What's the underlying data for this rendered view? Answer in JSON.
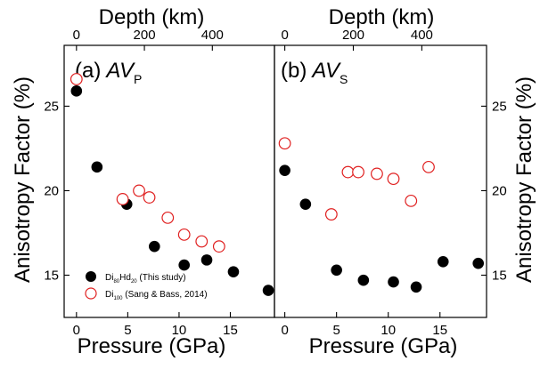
{
  "chart_data": [
    {
      "type": "scatter",
      "panel_label": "(a)",
      "panel_symbol": "AV",
      "panel_subscript": "P",
      "xlabel": "Pressure (GPa)",
      "ylabel": "Anisotropy Factor (%)",
      "top_xlabel": "Depth (km)",
      "xlim": [
        -1.2,
        19.3
      ],
      "ylim": [
        12.5,
        28.6
      ],
      "xticks": [
        0,
        5,
        10,
        15
      ],
      "yticks": [
        15,
        20,
        25
      ],
      "top_xticks": [
        0,
        200,
        400
      ],
      "series": [
        {
          "name_main": "Di",
          "name_sub1": "80",
          "name_mid": "Hd",
          "name_sub2": "20",
          "name_tail": " (This study)",
          "marker": "filled-circle",
          "color": "#000000",
          "x": [
            0.0,
            2.0,
            4.9,
            7.6,
            10.5,
            12.7,
            15.3,
            18.7
          ],
          "y": [
            25.9,
            21.4,
            19.2,
            16.7,
            15.6,
            15.9,
            15.2,
            14.1
          ]
        },
        {
          "name_main": "Di",
          "name_sub1": "100",
          "name_tail": " (Sang & Bass, 2014)",
          "marker": "open-circle",
          "color": "#e02020",
          "x": [
            0.0,
            4.5,
            6.1,
            7.1,
            8.9,
            10.5,
            12.2,
            13.9
          ],
          "y": [
            26.6,
            19.5,
            20.0,
            19.6,
            18.4,
            17.4,
            17.0,
            16.7
          ]
        }
      ]
    },
    {
      "type": "scatter",
      "panel_label": "(b)",
      "panel_symbol": "AV",
      "panel_subscript": "S",
      "xlabel": "Pressure (GPa)",
      "ylabel": "Anisotropy Factor (%)",
      "top_xlabel": "Depth (km)",
      "xlim": [
        -1.0,
        19.5
      ],
      "ylim": [
        12.5,
        28.6
      ],
      "xticks": [
        0,
        5,
        10,
        15
      ],
      "yticks": [
        15,
        20,
        25
      ],
      "top_xticks": [
        0,
        200,
        400
      ],
      "series": [
        {
          "name": "Di80Hd20 (This study)",
          "marker": "filled-circle",
          "color": "#000000",
          "x": [
            0.0,
            2.0,
            5.0,
            7.6,
            10.5,
            12.7,
            15.3,
            18.7
          ],
          "y": [
            21.2,
            19.2,
            15.3,
            14.7,
            14.6,
            14.3,
            15.8,
            15.7
          ]
        },
        {
          "name": "Di100 (Sang & Bass, 2014)",
          "marker": "open-circle",
          "color": "#e02020",
          "x": [
            0.0,
            4.5,
            6.1,
            7.1,
            8.9,
            10.5,
            12.2,
            13.9
          ],
          "y": [
            22.8,
            18.6,
            21.1,
            21.1,
            21.0,
            20.7,
            19.4,
            21.4
          ]
        }
      ]
    }
  ]
}
